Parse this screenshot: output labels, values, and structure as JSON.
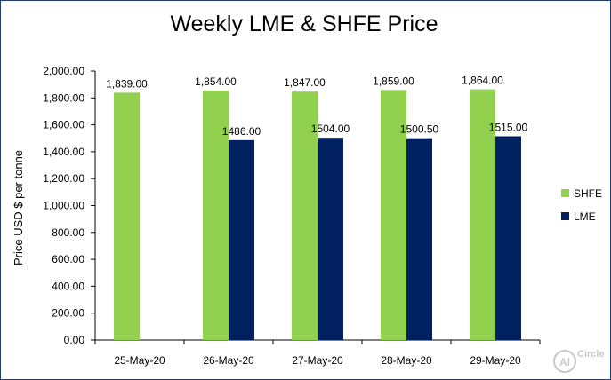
{
  "chart_data": {
    "type": "bar",
    "title": "Weekly LME & SHFE Price",
    "ylabel": "Price  USD $  per  tonne",
    "xlabel": "",
    "categories": [
      "25-May-20",
      "26-May-20",
      "27-May-20",
      "28-May-20",
      "29-May-20"
    ],
    "series": [
      {
        "name": "SHFE",
        "color": "#92d050",
        "values": [
          1839.0,
          1854.0,
          1847.0,
          1859.0,
          1864.0
        ],
        "labels": [
          "1,839.00",
          "1,854.00",
          "1,847.00",
          "1,859.00",
          "1,864.00"
        ]
      },
      {
        "name": "LME",
        "color": "#002060",
        "values": [
          null,
          1486.0,
          1504.0,
          1500.5,
          1515.0
        ],
        "labels": [
          "",
          "1486.00",
          "1504.00",
          "1500.50",
          "1515.00"
        ]
      }
    ],
    "ylim": [
      0,
      2000
    ],
    "yticks": [
      0,
      200,
      400,
      600,
      800,
      1000,
      1200,
      1400,
      1600,
      1800,
      2000
    ],
    "ytick_labels": [
      "0.00",
      "200.00",
      "400.00",
      "600.00",
      "800.00",
      "1,000.00",
      "1,200.00",
      "1,400.00",
      "1,600.00",
      "1,800.00",
      "2,000.00"
    ],
    "grid": false,
    "legend": "right"
  },
  "watermark": {
    "text": "Circle",
    "mark": "Al",
    "color": "#c9c9c9",
    "icon": "alcircle-logo-icon"
  }
}
